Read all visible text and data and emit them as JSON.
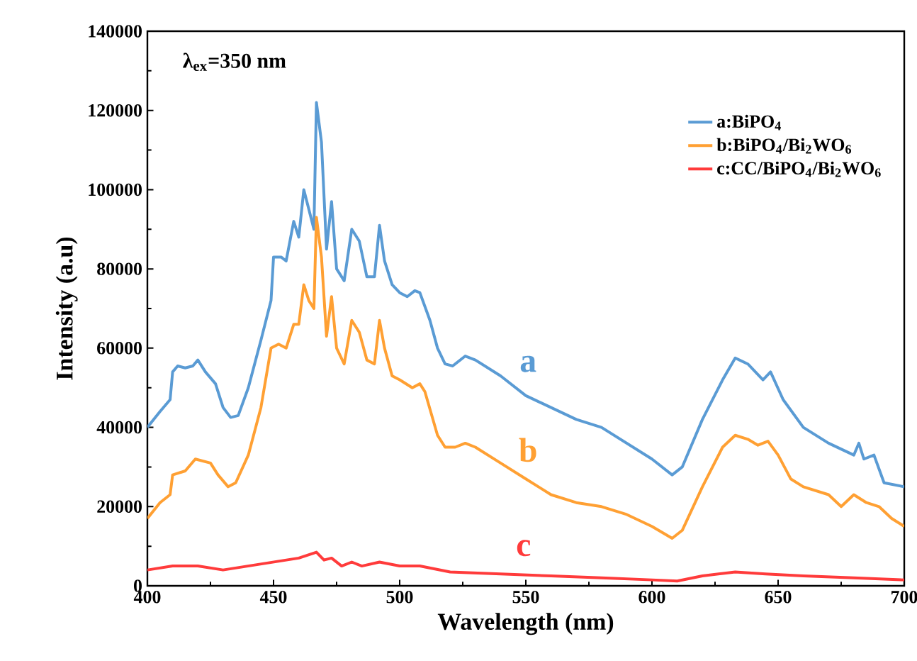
{
  "chart_data": {
    "type": "line",
    "xlabel": "Wavelength (nm)",
    "ylabel": "Intensity (a.u)",
    "xlim": [
      400,
      700
    ],
    "xticks": [
      400,
      450,
      500,
      550,
      600,
      650,
      700
    ],
    "ylim": [
      0,
      140000
    ],
    "yticks": [
      0,
      20000,
      40000,
      60000,
      80000,
      100000,
      120000,
      140000
    ],
    "legend": "top right",
    "line_style": "solid",
    "annotations": [
      "λ$_{ex}$=350 nm",
      "a",
      "b",
      "c"
    ],
    "series": [
      {
        "name": "a:BiPO$_{4}$",
        "color": "#5a9bd4",
        "x": [
          400,
          405,
          409,
          410,
          412,
          415,
          418,
          420,
          423,
          427,
          430,
          433,
          436,
          440,
          445,
          449,
          450,
          453,
          455,
          458,
          460,
          462,
          464,
          466,
          467,
          469,
          471,
          473,
          475,
          478,
          481,
          484,
          487,
          490,
          492,
          494,
          497,
          500,
          503,
          506,
          508,
          512,
          515,
          518,
          521,
          526,
          530,
          540,
          550,
          560,
          570,
          580,
          590,
          600,
          608,
          612,
          620,
          628,
          633,
          638,
          644,
          647,
          652,
          660,
          670,
          680,
          682,
          684,
          688,
          692,
          700
        ],
        "values": [
          40000,
          44000,
          47000,
          54000,
          55500,
          55000,
          55500,
          57000,
          54000,
          51000,
          45000,
          42500,
          43000,
          50000,
          62000,
          72000,
          83000,
          83000,
          82000,
          92000,
          88000,
          100000,
          95000,
          90000,
          122000,
          112000,
          85000,
          97000,
          80000,
          77000,
          90000,
          87000,
          78000,
          78000,
          91000,
          82000,
          76000,
          74000,
          73000,
          74500,
          74000,
          67000,
          60000,
          56000,
          55500,
          58000,
          57000,
          53000,
          48000,
          45000,
          42000,
          40000,
          36000,
          32000,
          28000,
          30000,
          42000,
          52000,
          57500,
          56000,
          52000,
          54000,
          47000,
          40000,
          36000,
          33000,
          36000,
          32000,
          33000,
          26000,
          25000
        ]
      },
      {
        "name": "b:BiPO$_{4}$/Bi$_{2}$WO$_{6}$",
        "color": "#ffa033",
        "x": [
          400,
          405,
          409,
          410,
          415,
          419,
          425,
          428,
          432,
          435,
          440,
          445,
          449,
          452,
          455,
          458,
          460,
          462,
          464,
          466,
          467,
          469,
          471,
          473,
          475,
          478,
          481,
          484,
          487,
          490,
          492,
          494,
          497,
          500,
          505,
          508,
          510,
          515,
          518,
          522,
          526,
          530,
          540,
          550,
          560,
          570,
          580,
          590,
          600,
          608,
          612,
          620,
          628,
          633,
          638,
          642,
          646,
          650,
          655,
          660,
          670,
          675,
          680,
          685,
          690,
          695,
          700
        ],
        "values": [
          17000,
          21000,
          23000,
          28000,
          29000,
          32000,
          31000,
          28000,
          25000,
          26000,
          33000,
          45000,
          60000,
          61000,
          60000,
          66000,
          66000,
          76000,
          72000,
          70000,
          93000,
          83000,
          63000,
          73000,
          60000,
          56000,
          67000,
          64000,
          57000,
          56000,
          67000,
          60000,
          53000,
          52000,
          50000,
          51000,
          49000,
          38000,
          35000,
          35000,
          36000,
          35000,
          31000,
          27000,
          23000,
          21000,
          20000,
          18000,
          15000,
          12000,
          14000,
          25000,
          35000,
          38000,
          37000,
          35500,
          36500,
          33000,
          27000,
          25000,
          23000,
          20000,
          23000,
          21000,
          20000,
          17000,
          15000
        ]
      },
      {
        "name": "c:CC/BiPO$_{4}$/Bi$_{2}$WO$_{6}$",
        "color": "#ff3b3b",
        "x": [
          400,
          410,
          420,
          430,
          440,
          450,
          460,
          467,
          470,
          473,
          477,
          481,
          485,
          492,
          500,
          508,
          520,
          540,
          560,
          580,
          600,
          610,
          620,
          633,
          645,
          660,
          680,
          700
        ],
        "values": [
          4000,
          5000,
          5000,
          4000,
          5000,
          6000,
          7000,
          8500,
          6500,
          7000,
          5000,
          6000,
          5000,
          6000,
          5000,
          5000,
          3500,
          3000,
          2500,
          2000,
          1500,
          1200,
          2500,
          3500,
          3000,
          2500,
          2000,
          1500
        ]
      }
    ]
  }
}
